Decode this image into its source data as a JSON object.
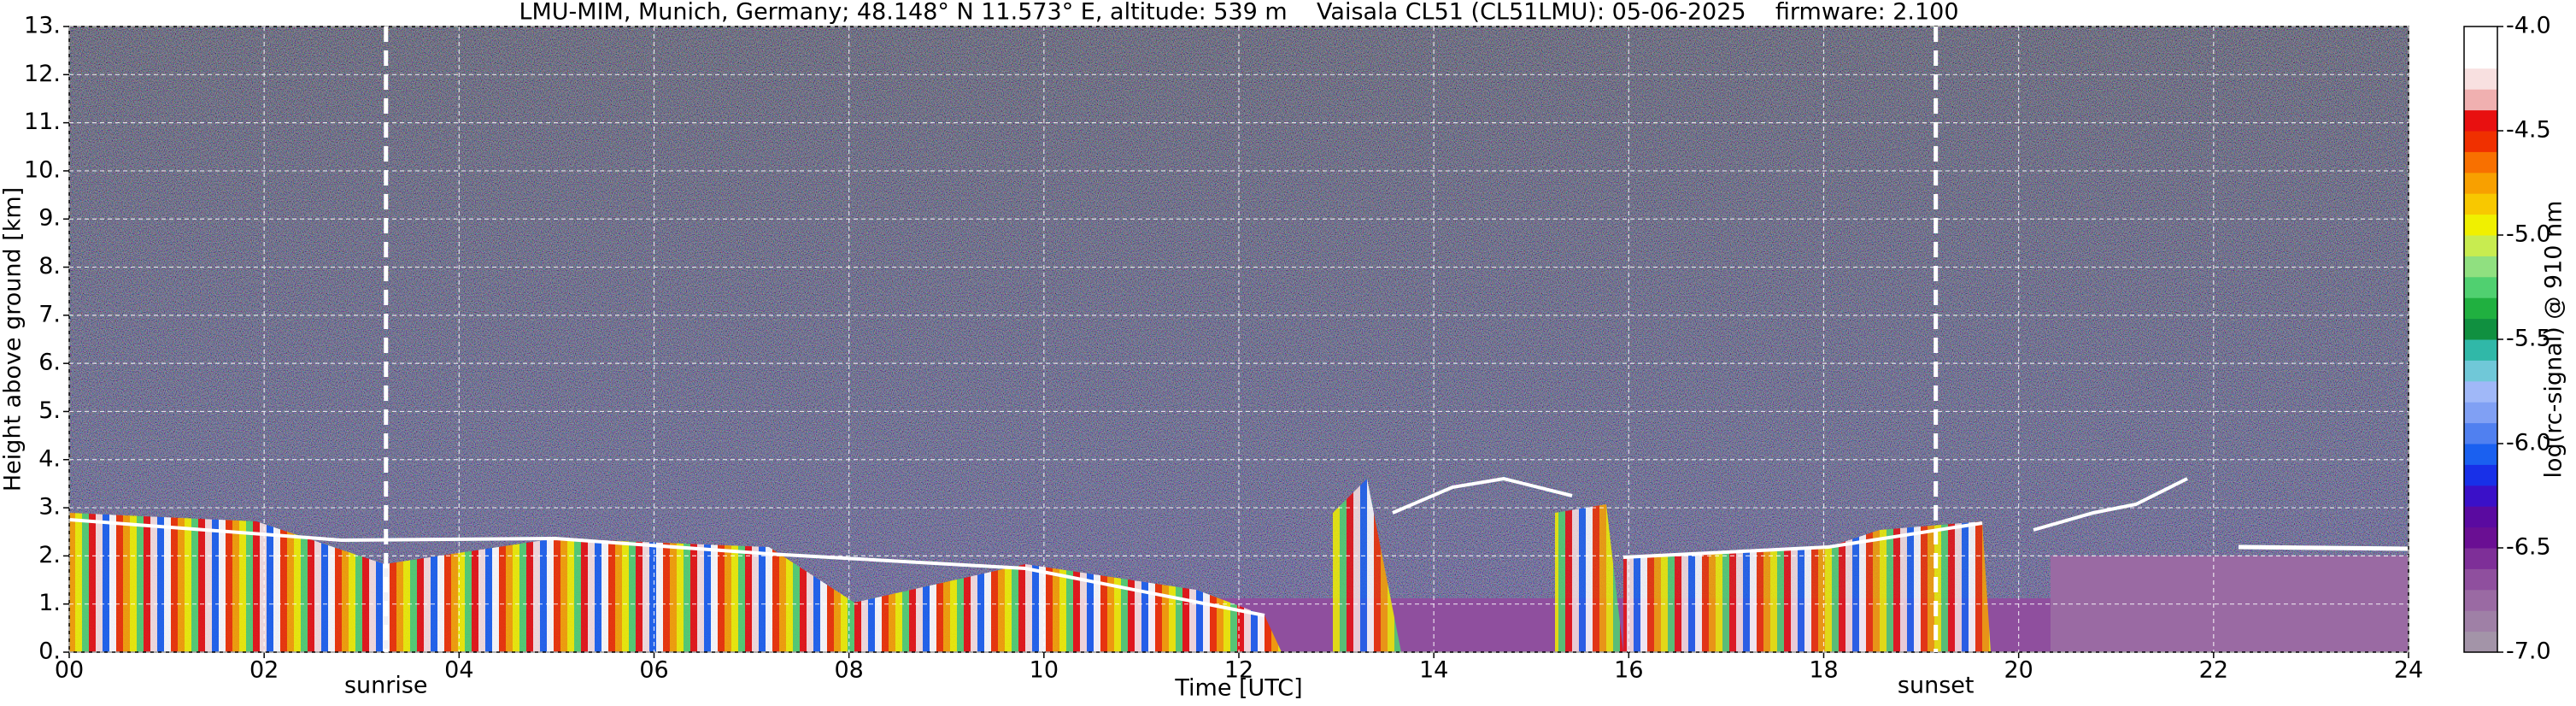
{
  "chart_data": {
    "type": "heatmap",
    "title": "LMU-MIM, Munich, Germany; 48.148° N 11.573° E, altitude: 539 m    Vaisala CL51 (CL51LMU): 05-06-2025    firmware: 2.100",
    "x_label": "Time [UTC]",
    "y_label": "Height above ground [km]",
    "xlim": [
      0,
      24
    ],
    "xticks": [
      {
        "value": 0,
        "label": "00"
      },
      {
        "value": 2,
        "label": "02"
      },
      {
        "value": 4,
        "label": "04"
      },
      {
        "value": 6,
        "label": "06"
      },
      {
        "value": 8,
        "label": "08"
      },
      10,
      12,
      14,
      16,
      18,
      20,
      22,
      24
    ],
    "ylim": [
      0,
      13
    ],
    "yticks": [
      {
        "value": 0,
        "label": "0."
      },
      {
        "value": 1,
        "label": "1."
      },
      {
        "value": 2,
        "label": "2."
      },
      {
        "value": 3,
        "label": "3."
      },
      {
        "value": 4,
        "label": "4."
      },
      {
        "value": 5,
        "label": "5."
      },
      {
        "value": 6,
        "label": "6."
      },
      {
        "value": 7,
        "label": "7."
      },
      {
        "value": 8,
        "label": "8."
      },
      {
        "value": 9,
        "label": "9."
      },
      {
        "value": 10,
        "label": "10."
      },
      {
        "value": 11,
        "label": "11."
      },
      {
        "value": 12,
        "label": "12."
      },
      {
        "value": 13,
        "label": "13."
      }
    ],
    "grid": true,
    "annotations": [
      {
        "text": "sunrise",
        "x": 3.25
      },
      {
        "text": "sunset",
        "x": 19.15
      }
    ],
    "colorbar": {
      "label": "log(rc-signal) @ 910 nm",
      "lim": [
        -7,
        -4
      ],
      "ticks": [
        {
          "value": -4,
          "label": "-4.0"
        },
        -4.5,
        {
          "value": -5,
          "label": "-5.0"
        },
        -5.5,
        {
          "value": -6,
          "label": "-6.0"
        },
        -6.5,
        {
          "value": -7,
          "label": "-7.0"
        }
      ],
      "colors": [
        "#a394a8",
        "#9f80a6",
        "#9a6aa3",
        "#8f4f9e",
        "#7e2f98",
        "#6a0f93",
        "#5a0aa0",
        "#3a10c8",
        "#1830e8",
        "#1a60f0",
        "#5080f0",
        "#80a0f4",
        "#a0b8f8",
        "#70c8d8",
        "#30b8a8",
        "#109040",
        "#20b040",
        "#50d070",
        "#90e080",
        "#c8ec50",
        "#f0f000",
        "#f8c800",
        "#f8a000",
        "#f87000",
        "#f03000",
        "#e81010",
        "#f0b0b0",
        "#f8e0e0",
        "#ffffff",
        "#ffffff"
      ]
    }
  }
}
